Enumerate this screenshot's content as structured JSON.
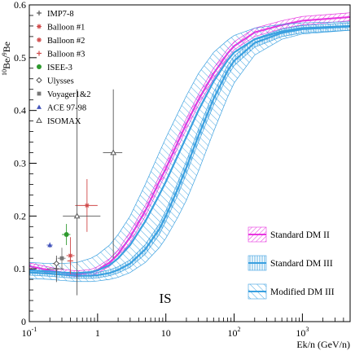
{
  "chart_data": {
    "type": "scatter",
    "title": "",
    "ylabel": "10Be/9Be",
    "ylabel_parts": {
      "sup1": "10",
      "base1": "Be/",
      "sup2": "9",
      "base2": "Be"
    },
    "xlabel": "Ek/n (GeV/n)",
    "xscale": "log",
    "xlim": [
      0.1,
      5000
    ],
    "ylim": [
      0,
      0.6
    ],
    "x_tick_labels": [
      {
        "base": "10",
        "exp": "-1",
        "x": 0.1
      },
      {
        "base": "1",
        "exp": "",
        "x": 1
      },
      {
        "base": "10",
        "exp": "",
        "x": 10
      },
      {
        "base": "10",
        "exp": "2",
        "x": 100
      },
      {
        "base": "10",
        "exp": "3",
        "x": 1000
      }
    ],
    "y_ticks": [
      0,
      0.1,
      0.2,
      0.3,
      0.4,
      0.5,
      0.6
    ],
    "y_tick_labels": [
      "0",
      "0.1",
      "0.2",
      "0.3",
      "0.4",
      "0.5",
      "0.6"
    ],
    "annotation": "IS",
    "grid": false,
    "data_legend_placement": "top-left",
    "model_legend_placement": "bottom-right",
    "data_series": [
      {
        "name": "IMP7-8",
        "marker": "plus",
        "color": "#555555",
        "points": [
          {
            "x": 0.25,
            "y": 0.1,
            "xerr": [
              0.18,
              0.32
            ],
            "yerr": [
              0.075,
              0.125
            ]
          }
        ]
      },
      {
        "name": "Balloon #1",
        "marker": "star",
        "color": "#d04a4a",
        "points": [
          {
            "x": 0.4,
            "y": 0.125,
            "xerr": [
              0.35,
              0.46
            ],
            "yerr": [
              0.09,
              0.16
            ]
          }
        ]
      },
      {
        "name": "Balloon #2",
        "marker": "star",
        "color": "#d04a4a",
        "points": [
          {
            "x": 0.7,
            "y": 0.22,
            "xerr": [
              0.47,
              1.0
            ],
            "yerr": [
              0.17,
              0.27
            ]
          }
        ]
      },
      {
        "name": "Balloon #3",
        "marker": "plus",
        "color": "#d04a4a",
        "points": [
          {
            "x": 0.4,
            "y": 0.115,
            "xerr": [
              0.36,
              0.44
            ],
            "yerr": [
              0.105,
              0.125
            ]
          }
        ]
      },
      {
        "name": "ISEE-3",
        "marker": "circle",
        "color": "#2e9a2e",
        "points": [
          {
            "x": 0.35,
            "y": 0.165,
            "xerr": [
              0.3,
              0.4
            ],
            "yerr": [
              0.145,
              0.185
            ]
          }
        ]
      },
      {
        "name": "Ulysses",
        "marker": "diamond",
        "color": "#555555",
        "points": [
          {
            "x": 0.25,
            "y": 0.11,
            "xerr": [
              0.22,
              0.28
            ],
            "yerr": [
              0.1,
              0.12
            ]
          }
        ]
      },
      {
        "name": "Voyager1&2",
        "marker": "square",
        "color": "#777777",
        "points": [
          {
            "x": 0.3,
            "y": 0.12,
            "xerr": [
              0.26,
              0.34
            ],
            "yerr": [
              0.1,
              0.14
            ]
          }
        ]
      },
      {
        "name": "ACE 97-98",
        "marker": "triangle",
        "color": "#4455bb",
        "points": [
          {
            "x": 0.2,
            "y": 0.145,
            "xerr": [
              0.18,
              0.22
            ],
            "yerr": [
              0.14,
              0.15
            ]
          }
        ]
      },
      {
        "name": "ISOMAX",
        "marker": "triangle-open",
        "color": "#555555",
        "points": [
          {
            "x": 0.5,
            "y": 0.2,
            "xerr": [
              0.31,
              1.1
            ],
            "yerr": [
              0.05,
              0.44
            ]
          },
          {
            "x": 1.7,
            "y": 0.32,
            "xerr": [
              1.2,
              2.3
            ],
            "yerr": [
              0.12,
              0.44
            ]
          }
        ]
      }
    ],
    "bands": [
      {
        "name": "Standard DM II",
        "color": "#e838e0",
        "hatch": "diag-down",
        "legend_swatch": "diag-down",
        "x": [
          0.1,
          0.2,
          0.3,
          0.5,
          0.8,
          1,
          1.5,
          2,
          3,
          5,
          8,
          10,
          15,
          20,
          30,
          50,
          80,
          100,
          200,
          500,
          1000,
          5000
        ],
        "lower": [
          0.1,
          0.092,
          0.088,
          0.085,
          0.088,
          0.092,
          0.105,
          0.12,
          0.15,
          0.2,
          0.255,
          0.28,
          0.33,
          0.365,
          0.41,
          0.46,
          0.5,
          0.515,
          0.54,
          0.555,
          0.562,
          0.57
        ],
        "center": [
          0.105,
          0.097,
          0.093,
          0.09,
          0.093,
          0.098,
          0.112,
          0.128,
          0.16,
          0.21,
          0.265,
          0.29,
          0.34,
          0.375,
          0.42,
          0.47,
          0.508,
          0.522,
          0.548,
          0.562,
          0.57,
          0.577
        ],
        "upper": [
          0.111,
          0.103,
          0.099,
          0.096,
          0.099,
          0.104,
          0.119,
          0.136,
          0.17,
          0.22,
          0.275,
          0.3,
          0.35,
          0.385,
          0.43,
          0.48,
          0.516,
          0.53,
          0.556,
          0.57,
          0.578,
          0.585
        ]
      },
      {
        "name": "Standard DM III",
        "color": "#3aa0e0",
        "hatch": "vertical",
        "legend_swatch": "vertical",
        "x": [
          0.1,
          0.2,
          0.3,
          0.5,
          0.8,
          1,
          1.5,
          2,
          3,
          5,
          8,
          10,
          15,
          20,
          30,
          50,
          80,
          100,
          200,
          500,
          1000,
          5000
        ],
        "lower": [
          0.088,
          0.086,
          0.084,
          0.082,
          0.082,
          0.083,
          0.087,
          0.092,
          0.103,
          0.128,
          0.165,
          0.19,
          0.24,
          0.28,
          0.34,
          0.41,
          0.465,
          0.485,
          0.52,
          0.54,
          0.547,
          0.552
        ],
        "center": [
          0.093,
          0.091,
          0.089,
          0.087,
          0.087,
          0.088,
          0.092,
          0.098,
          0.11,
          0.137,
          0.175,
          0.2,
          0.252,
          0.292,
          0.352,
          0.422,
          0.475,
          0.494,
          0.528,
          0.547,
          0.554,
          0.559
        ],
        "upper": [
          0.098,
          0.096,
          0.094,
          0.092,
          0.092,
          0.093,
          0.098,
          0.104,
          0.117,
          0.146,
          0.185,
          0.21,
          0.264,
          0.304,
          0.364,
          0.434,
          0.485,
          0.503,
          0.536,
          0.554,
          0.561,
          0.566
        ]
      },
      {
        "name": "Modified DM III",
        "color": "#3aa0e0",
        "hatch": "diag-up",
        "legend_swatch": "diag-up",
        "x": [
          0.1,
          0.2,
          0.3,
          0.5,
          0.8,
          1,
          1.5,
          2,
          3,
          5,
          8,
          10,
          15,
          20,
          30,
          50,
          80,
          100,
          200,
          500,
          1000,
          5000
        ],
        "lower": [
          0.082,
          0.08,
          0.078,
          0.076,
          0.076,
          0.077,
          0.08,
          0.084,
          0.093,
          0.112,
          0.14,
          0.158,
          0.198,
          0.23,
          0.285,
          0.36,
          0.425,
          0.452,
          0.505,
          0.535,
          0.545,
          0.552
        ],
        "center": [
          0.097,
          0.095,
          0.093,
          0.092,
          0.094,
          0.097,
          0.107,
          0.12,
          0.145,
          0.19,
          0.24,
          0.265,
          0.315,
          0.35,
          0.4,
          0.455,
          0.495,
          0.51,
          0.535,
          0.55,
          0.556,
          0.56
        ],
        "upper": [
          0.112,
          0.11,
          0.11,
          0.112,
          0.12,
          0.127,
          0.145,
          0.165,
          0.2,
          0.26,
          0.32,
          0.348,
          0.395,
          0.428,
          0.47,
          0.51,
          0.533,
          0.542,
          0.556,
          0.563,
          0.566,
          0.568
        ]
      }
    ]
  }
}
